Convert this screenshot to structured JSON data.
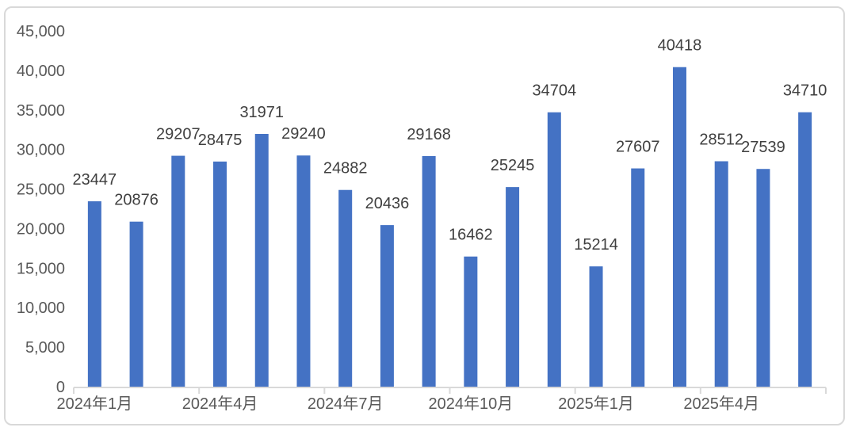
{
  "chart_data": {
    "type": "bar",
    "title": "",
    "xlabel": "",
    "ylabel": "",
    "values": [
      23447,
      20876,
      29207,
      28475,
      31971,
      29240,
      24882,
      20436,
      29168,
      16462,
      25245,
      34704,
      15214,
      27607,
      40418,
      28512,
      27539,
      34710
    ],
    "data_labels": [
      "23447",
      "20876",
      "29207",
      "28475",
      "31971",
      "29240",
      "24882",
      "20436",
      "29168",
      "16462",
      "25245",
      "34704",
      "15214",
      "27607",
      "40418",
      "28512",
      "27539",
      "34710"
    ],
    "x_tick_labels": [
      "2024年1月",
      "2024年4月",
      "2024年7月",
      "2024年10月",
      "2025年1月",
      "2025年4月"
    ],
    "x_tick_interval": 3,
    "ylim": [
      0,
      45000
    ],
    "y_tick_step": 5000,
    "y_tick_labels": [
      "0",
      "5,000",
      "10,000",
      "15,000",
      "20,000",
      "25,000",
      "30,000",
      "35,000",
      "40,000",
      "45,000"
    ],
    "grid": false,
    "legend": false
  },
  "style": {
    "bar_color": "#4472C4",
    "axis_line_color": "#D9D9D9",
    "data_label_color": "#3F3F3F",
    "tick_label_color": "#595959",
    "card_border_color": "#D9D9D9",
    "background_color": "#FFFFFF"
  }
}
